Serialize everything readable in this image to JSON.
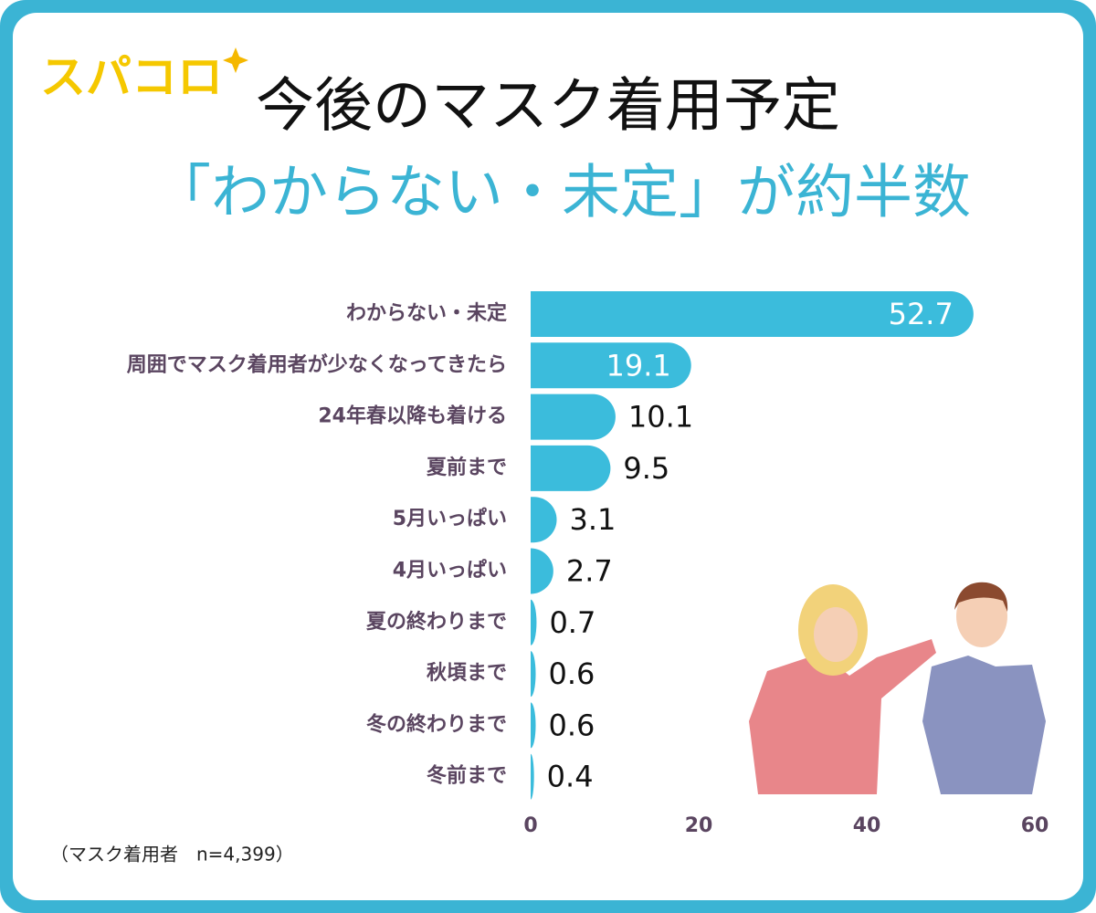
{
  "chart_data": {
    "type": "barh",
    "logo": "スパコロ",
    "title": "今後のマスク着用予定",
    "subtitle": "「わからない・未定」が約半数",
    "note": "（マスク着用者　n=4,399）",
    "categories": [
      "わからない・未定",
      "周囲でマスク着用者が少なくなってきたら",
      "24年春以降も着ける",
      "夏前まで",
      "5月いっぱい",
      "4月いっぱい",
      "夏の終わりまで",
      "秋頃まで",
      "冬の終わりまで",
      "冬前まで"
    ],
    "values": [
      52.7,
      19.1,
      10.1,
      9.5,
      3.1,
      2.7,
      0.7,
      0.6,
      0.6,
      0.4
    ],
    "color": "#3bbcdc",
    "xlim": [
      0,
      60
    ],
    "xticks": [
      0,
      20,
      40,
      60
    ],
    "grid": false
  }
}
